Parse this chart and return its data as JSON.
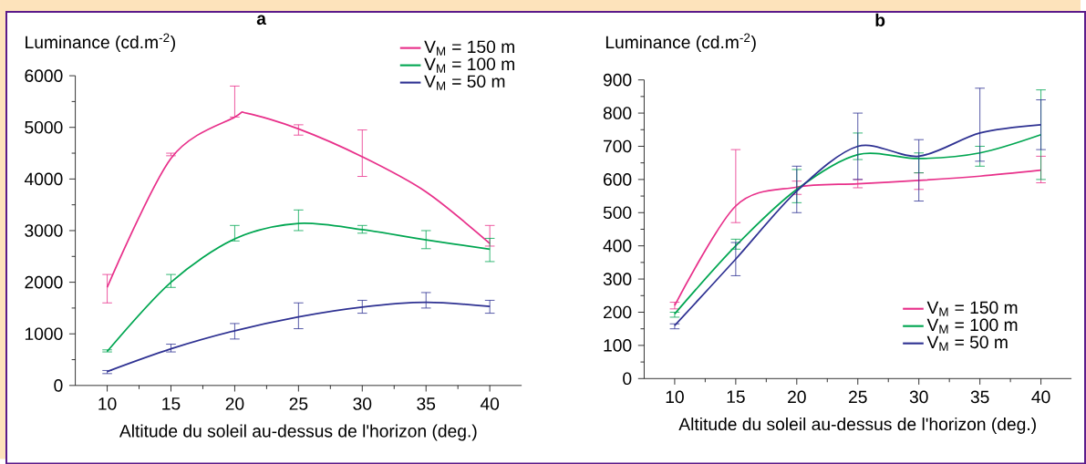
{
  "chart_data": [
    {
      "type": "line",
      "title": "a",
      "ylabel": "Luminance (cd.m$^{-2}$)",
      "xlabel": "Altitude du soleil au-dessus de l'horizon (deg.)",
      "xlim": [
        7.5,
        42.5
      ],
      "xticks": [
        10,
        15,
        20,
        25,
        30,
        35,
        40
      ],
      "ylim": [
        0,
        6000
      ],
      "yticks": [
        0,
        1000,
        2000,
        3000,
        4000,
        5000,
        6000
      ],
      "legend": "top right",
      "x": [
        10,
        15,
        20,
        25,
        30,
        35,
        40
      ],
      "series": [
        {
          "name": "V$_{M}$ = 150 m",
          "color": "#e8308a",
          "x": [
            10,
            15,
            20,
            21,
            25,
            30,
            35,
            40
          ],
          "values": [
            1900,
            4400,
            5200,
            5270,
            4970,
            4430,
            3750,
            2750
          ],
          "errors": [
            [
              1600,
              2150
            ],
            [
              4450,
              4500
            ],
            [
              5200,
              5800
            ],
            null,
            [
              4850,
              5050
            ],
            [
              4050,
              4950
            ],
            null,
            [
              2700,
              3100
            ]
          ]
        },
        {
          "name": "V$_{M}$ = 100 m",
          "color": "#00a651",
          "values": [
            660,
            2000,
            2840,
            3140,
            3020,
            2820,
            2640
          ],
          "errors": [
            [
              650,
              690
            ],
            [
              1900,
              2150
            ],
            [
              2800,
              3100
            ],
            [
              3000,
              3400
            ],
            [
              2950,
              3100
            ],
            [
              2650,
              3000
            ],
            [
              2400,
              2850
            ]
          ]
        },
        {
          "name": "V$_{M}$ =  50 m",
          "color": "#2e3192",
          "values": [
            270,
            710,
            1060,
            1330,
            1520,
            1610,
            1530
          ],
          "errors": [
            [
              230,
              290
            ],
            [
              650,
              800
            ],
            [
              900,
              1200
            ],
            [
              1100,
              1600
            ],
            [
              1400,
              1650
            ],
            [
              1500,
              1800
            ],
            [
              1400,
              1650
            ]
          ]
        }
      ]
    },
    {
      "type": "line",
      "title": "b",
      "ylabel": "Luminance (cd.m$^{-2}$)",
      "xlabel": "Altitude du soleil au-dessus de l'horizon (deg.)",
      "xlim": [
        7.5,
        42.5
      ],
      "xticks": [
        10,
        15,
        20,
        25,
        30,
        35,
        40
      ],
      "ylim": [
        0,
        900
      ],
      "yticks": [
        0,
        100,
        200,
        300,
        400,
        500,
        600,
        700,
        800,
        900
      ],
      "legend": "bottom right",
      "x": [
        10,
        15,
        20,
        25,
        30,
        35,
        40
      ],
      "series": [
        {
          "name": "V$_{M}$ = 150 m",
          "color": "#e8308a",
          "values": [
            220,
            520,
            577,
            587,
            597,
            610,
            628
          ],
          "errors": [
            [
              210,
              230
            ],
            [
              470,
              690
            ],
            [
              555,
              595
            ],
            [
              575,
              600
            ],
            [
              570,
              620
            ],
            null,
            [
              590,
              670
            ]
          ]
        },
        {
          "name": "V$_{M}$ = 100 m",
          "color": "#00a651",
          "values": [
            195,
            400,
            570,
            675,
            663,
            680,
            735
          ],
          "errors": [
            [
              185,
              200
            ],
            [
              390,
              420
            ],
            [
              530,
              630
            ],
            [
              660,
              740
            ],
            [
              620,
              680
            ],
            [
              640,
              700
            ],
            [
              600,
              870
            ]
          ]
        },
        {
          "name": "V$_{M}$ =  50 m",
          "color": "#2e3192",
          "values": [
            160,
            360,
            565,
            700,
            670,
            740,
            765
          ],
          "errors": [
            [
              150,
              165
            ],
            [
              310,
              410
            ],
            [
              500,
              640
            ],
            [
              600,
              800
            ],
            [
              535,
              720
            ],
            [
              655,
              875
            ],
            [
              690,
              840
            ]
          ]
        }
      ]
    }
  ]
}
